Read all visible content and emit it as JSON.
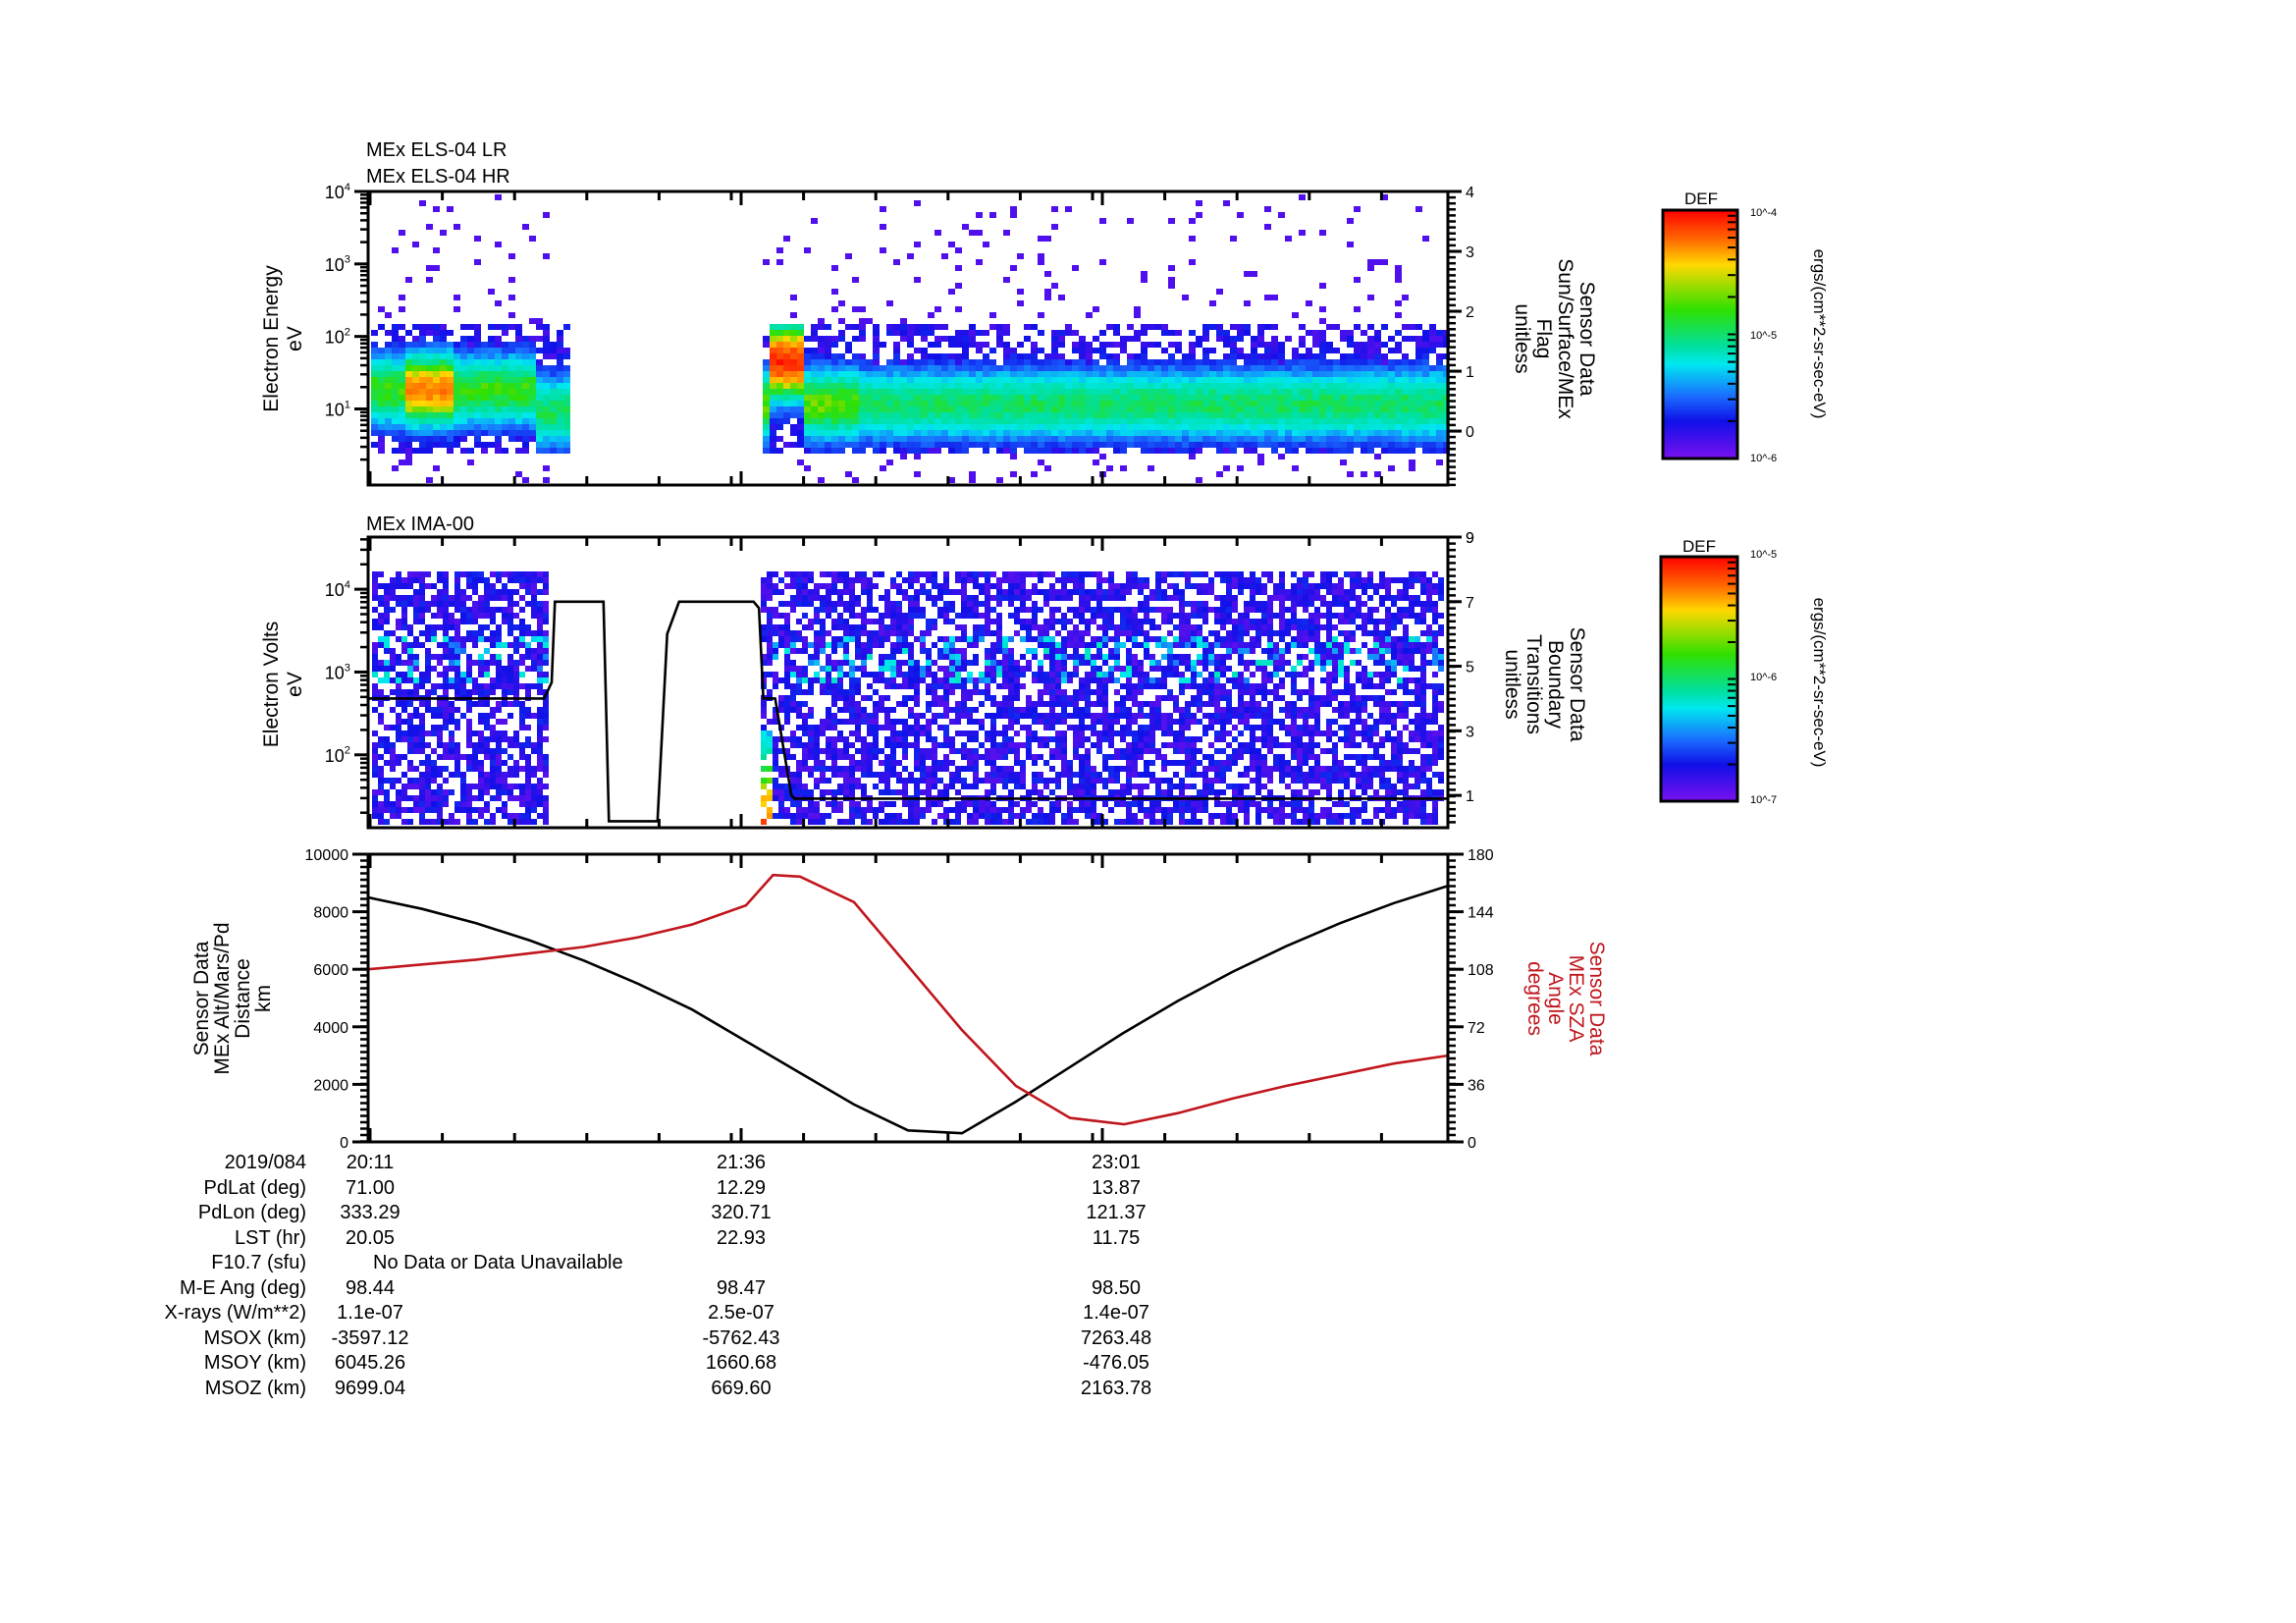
{
  "figure": {
    "panels": [
      {
        "id": "els",
        "titles": [
          "MEx ELS-04 LR",
          "MEx ELS-04 HR"
        ],
        "left_axis": {
          "label_lines": [
            "Electron Energy",
            "eV"
          ],
          "scale": "log",
          "ticks": [
            "10^1",
            "10^2",
            "10^3",
            "10^4"
          ]
        },
        "right_axis": {
          "label_lines": [
            "Sensor Data",
            "Sun/Surface/MEx",
            "Flag",
            "unitless"
          ],
          "ticks": [
            "0",
            "1",
            "2",
            "3",
            "4"
          ]
        },
        "colorbar": {
          "title": "DEF",
          "units": "ergs/(cm**2-sr-sec-eV)",
          "top": "10^-4",
          "mid": "10^-5",
          "bottom": "10^-6"
        }
      },
      {
        "id": "ima",
        "titles": [
          "MEx IMA-00"
        ],
        "left_axis": {
          "label_lines": [
            "Electron Volts",
            "eV"
          ],
          "scale": "log",
          "ticks": [
            "10^2",
            "10^3",
            "10^4"
          ]
        },
        "right_axis": {
          "label_lines": [
            "Sensor Data",
            "Boundary",
            "Transitions",
            "unitless"
          ],
          "ticks": [
            "1",
            "3",
            "5",
            "7",
            "9"
          ]
        },
        "colorbar": {
          "title": "DEF",
          "units": "ergs/(cm**2-sr-sec-eV)",
          "top": "10^-5",
          "mid": "10^-6",
          "bottom": "10^-7"
        }
      },
      {
        "id": "orbit",
        "left_axis": {
          "label_lines": [
            "Sensor Data",
            "MEx Alt/Mars/Pd",
            "Distance",
            "km"
          ],
          "ticks": [
            "0",
            "2000",
            "4000",
            "6000",
            "8000",
            "10000"
          ]
        },
        "right_axis": {
          "label_lines": [
            "Sensor Data",
            "MEx SZA",
            "Angle",
            "degrees"
          ],
          "ticks": [
            "0",
            "36",
            "72",
            "108",
            "144",
            "180"
          ],
          "color": "#c0161d"
        }
      }
    ]
  },
  "chart_data": [
    {
      "type": "heatmap",
      "title": "MEx ELS-04 LR / MEx ELS-04 HR",
      "ylabel": "Electron Energy (eV)",
      "ylim": [
        1,
        10000
      ],
      "y2label": "Sensor Data Sun/Surface/MEx Flag (unitless)",
      "y2lim": [
        -0.9,
        4
      ],
      "colorbar": {
        "label": "DEF ergs/(cm**2-sr-sec-eV)",
        "range": [
          1e-06,
          0.0001
        ]
      },
      "data_intervals": [
        {
          "start": "20:11",
          "end": "~21:00",
          "peak_energy_eV": 25,
          "peak_region": "red near 20:20-20:35"
        },
        {
          "start": "~21:59",
          "end": "end",
          "peak_energy_eV": 12,
          "peak_region": "red near 22:03-22:07 at ~100 eV"
        }
      ],
      "gap": [
        "~21:00",
        "~21:59"
      ]
    },
    {
      "type": "heatmap",
      "title": "MEx IMA-00",
      "ylabel": "Electron Volts (eV)",
      "ylim": [
        20,
        40000
      ],
      "y2label": "Sensor Data Boundary Transitions (unitless)",
      "y2lim": [
        0,
        9
      ],
      "colorbar": {
        "label": "DEF ergs/(cm**2-sr-sec-eV)",
        "range": [
          1e-07,
          1e-05
        ]
      },
      "boundary_transitions": {
        "x": [
          0.0,
          0.163,
          0.17,
          0.173,
          0.218,
          0.223,
          0.268,
          0.277,
          0.288,
          0.357,
          0.362,
          0.366,
          0.377,
          0.392,
          0.395,
          1.0
        ],
        "y": [
          4.0,
          4.0,
          4.5,
          7.0,
          7.0,
          0.2,
          0.2,
          6.0,
          7.0,
          7.0,
          6.8,
          4.0,
          4.0,
          1.0,
          0.9,
          0.9
        ]
      }
    },
    {
      "type": "line",
      "title": "",
      "xlabel": "UT 2019/084",
      "x_ticks": [
        "20:11",
        "21:36",
        "23:01"
      ],
      "series": [
        {
          "name": "MEx Alt/Mars/Pd Distance (km)",
          "color": "#000000",
          "axis": "left",
          "ylim": [
            0,
            10000
          ],
          "x": [
            0.0,
            0.05,
            0.1,
            0.15,
            0.2,
            0.25,
            0.3,
            0.35,
            0.4,
            0.45,
            0.5,
            0.55,
            0.6,
            0.65,
            0.7,
            0.75,
            0.8,
            0.85,
            0.9,
            0.95,
            1.0
          ],
          "values": [
            8500,
            8100,
            7600,
            7000,
            6300,
            5500,
            4600,
            3500,
            2400,
            1300,
            400,
            300,
            1400,
            2600,
            3800,
            4900,
            5900,
            6800,
            7600,
            8300,
            8900
          ]
        },
        {
          "name": "MEx SZA Angle (degrees)",
          "color": "#c0161d",
          "axis": "right",
          "ylim": [
            0,
            180
          ],
          "x": [
            0.0,
            0.05,
            0.1,
            0.15,
            0.2,
            0.25,
            0.3,
            0.35,
            0.375,
            0.4,
            0.45,
            0.5,
            0.55,
            0.6,
            0.65,
            0.7,
            0.75,
            0.8,
            0.85,
            0.9,
            0.95,
            1.0
          ],
          "values": [
            108,
            111,
            114,
            118,
            122,
            128,
            136,
            148,
            167,
            166,
            150,
            110,
            70,
            35,
            15,
            11,
            18,
            27,
            35,
            42,
            49,
            54
          ]
        }
      ]
    }
  ],
  "ephemeris_table": {
    "labels": [
      "2019/084",
      "PdLat (deg)",
      "PdLon (deg)",
      "LST (hr)",
      "F10.7 (sfu)",
      "M-E Ang (deg)",
      "X-rays (W/m**2)",
      "MSOX (km)",
      "MSOY (km)",
      "MSOZ (km)"
    ],
    "columns": [
      [
        "20:11",
        "71.00",
        "333.29",
        "20.05",
        "",
        "98.44",
        "1.1e-07",
        "-3597.12",
        "6045.26",
        "9699.04"
      ],
      [
        "21:36",
        "12.29",
        "320.71",
        "22.93",
        "",
        "98.47",
        "2.5e-07",
        "-5762.43",
        "1660.68",
        "669.60"
      ],
      [
        "23:01",
        "13.87",
        "121.37",
        "11.75",
        "",
        "98.50",
        "1.4e-07",
        "7263.48",
        "-476.05",
        "2163.78"
      ]
    ],
    "f107_note": "No Data or Data Unavailable"
  }
}
